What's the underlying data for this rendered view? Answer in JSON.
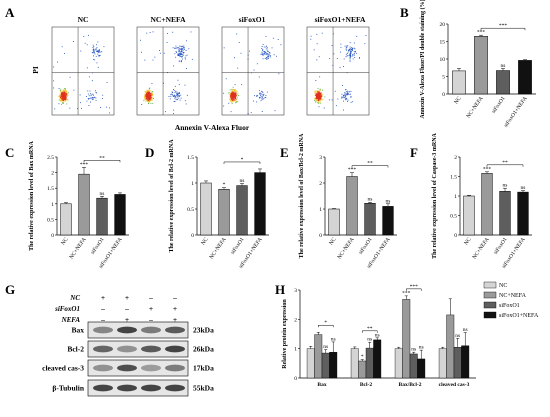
{
  "panel_labels": [
    "A",
    "B",
    "C",
    "D",
    "E",
    "F",
    "G",
    "H"
  ],
  "flow": {
    "groups": [
      "NC",
      "NC+NEFA",
      "siFoxO1",
      "siFoxO1+NEFA"
    ],
    "y_label": "PI",
    "x_label": "Annexin V-Alexa Fluor",
    "density": [
      0.55,
      1.0,
      0.6,
      0.85
    ]
  },
  "colors": {
    "NC": "#d4d4d4",
    "NC+NEFA": "#9a9a9a",
    "siFoxO1": "#5e5e5e",
    "siFoxO1+NEFA": "#111111"
  },
  "chart_data": [
    {
      "panel": "B",
      "type": "bar",
      "categories": [
        "NC",
        "NC+NEFA",
        "siFoxO1",
        "siFoxO1+NEFA"
      ],
      "values": [
        6.6,
        16.5,
        6.7,
        9.6
      ],
      "errors": [
        0.7,
        0.3,
        0.6,
        0.2
      ],
      "ylabel": "Annexin V-Alexa Fluor/PI double staining (%)",
      "ylim": [
        0,
        20
      ],
      "yticks": [
        0,
        5,
        10,
        15,
        20
      ],
      "sig": [
        {
          "over": 1,
          "text": "***"
        },
        {
          "over": 2,
          "text": "ns"
        }
      ],
      "brackets": [
        {
          "from": 1,
          "to": 3,
          "text": "***"
        }
      ]
    },
    {
      "panel": "C",
      "type": "bar",
      "categories": [
        "NC",
        "NC+NEFA",
        "siFoxO1",
        "siFoxO1+NEFA"
      ],
      "values": [
        1.0,
        1.95,
        1.18,
        1.3
      ],
      "errors": [
        0.04,
        0.22,
        0.06,
        0.05
      ],
      "ylabel": "The relative expression level of Bax mRNA",
      "ylim": [
        0,
        2.5
      ],
      "yticks": [
        0.0,
        0.5,
        1.0,
        1.5,
        2.0,
        2.5
      ],
      "sig": [
        {
          "over": 1,
          "text": "***"
        },
        {
          "over": 2,
          "text": "ns"
        }
      ],
      "brackets": [
        {
          "from": 1,
          "to": 3,
          "text": "**"
        }
      ]
    },
    {
      "panel": "D",
      "type": "bar",
      "categories": [
        "NC",
        "NC+NEFA",
        "siFoxO1",
        "siFoxO1+NEFA"
      ],
      "values": [
        1.0,
        0.88,
        0.95,
        1.2
      ],
      "errors": [
        0.04,
        0.03,
        0.04,
        0.07
      ],
      "ylabel": "The relative expression level of Bcl-2 mRNA",
      "ylim": [
        0,
        1.5
      ],
      "yticks": [
        0.0,
        0.5,
        1.0,
        1.5
      ],
      "sig": [
        {
          "over": 1,
          "text": "*"
        },
        {
          "over": 2,
          "text": "ns"
        }
      ],
      "brackets": [
        {
          "from": 1,
          "to": 3,
          "text": "*"
        }
      ]
    },
    {
      "panel": "E",
      "type": "bar",
      "categories": [
        "NC",
        "NC+NEFA",
        "siFoxO1",
        "siFoxO1+NEFA"
      ],
      "values": [
        1.0,
        2.25,
        1.22,
        1.1
      ],
      "errors": [
        0.02,
        0.15,
        0.04,
        0.1
      ],
      "ylabel": "The relative expression level of Bax/Bcl-2 mRNA",
      "ylim": [
        0,
        3
      ],
      "yticks": [
        0,
        1,
        2,
        3
      ],
      "sig": [
        {
          "over": 1,
          "text": "***"
        },
        {
          "over": 2,
          "text": "ns"
        },
        {
          "over": 3,
          "text": "ns"
        }
      ],
      "brackets": [
        {
          "from": 1,
          "to": 3,
          "text": "**"
        }
      ]
    },
    {
      "panel": "F",
      "type": "bar",
      "categories": [
        "NC",
        "NC+NEFA",
        "siFoxO1",
        "siFoxO1+NEFA"
      ],
      "values": [
        1.0,
        1.58,
        1.12,
        1.1
      ],
      "errors": [
        0.02,
        0.04,
        0.08,
        0.04
      ],
      "ylabel": "The relative expression level of Caspase-3 mRNA",
      "ylim": [
        0,
        2.0
      ],
      "yticks": [
        0.0,
        0.5,
        1.0,
        1.5,
        2.0
      ],
      "sig": [
        {
          "over": 1,
          "text": "***"
        },
        {
          "over": 2,
          "text": "ns"
        },
        {
          "over": 3,
          "text": "ns"
        }
      ],
      "brackets": [
        {
          "from": 1,
          "to": 3,
          "text": "**"
        }
      ]
    },
    {
      "panel": "H",
      "type": "bar",
      "categories": [
        "Bax",
        "Bcl-2",
        "Bax/Bcl-2",
        "cleaved cas-3"
      ],
      "series": [
        {
          "name": "NC",
          "values": [
            1.0,
            1.0,
            1.0,
            1.0
          ],
          "errors": [
            0.08,
            0.06,
            0.05,
            0.05
          ]
        },
        {
          "name": "NC+NEFA",
          "values": [
            1.48,
            0.58,
            2.68,
            2.15
          ],
          "errors": [
            0.08,
            0.05,
            0.12,
            0.55
          ]
        },
        {
          "name": "siFoxO1",
          "values": [
            0.85,
            1.02,
            0.82,
            1.05
          ],
          "errors": [
            0.12,
            0.2,
            0.06,
            0.3
          ]
        },
        {
          "name": "siFoxO1+NEFA",
          "values": [
            0.88,
            1.3,
            0.65,
            1.1
          ],
          "errors": [
            0.35,
            0.07,
            0.3,
            0.45
          ]
        }
      ],
      "ylabel": "Relative protein expression",
      "ylim": [
        0,
        3
      ],
      "yticks": [
        0,
        1,
        2,
        3
      ],
      "legend": "right",
      "sig": [
        {
          "cat": 0,
          "series": 2,
          "text": "ns"
        },
        {
          "cat": 0,
          "series": 3,
          "text": "ns"
        },
        {
          "cat": 1,
          "series": 1,
          "text": "*"
        },
        {
          "cat": 1,
          "series": 2,
          "text": "ns"
        },
        {
          "cat": 1,
          "series": 3,
          "text": "ns"
        },
        {
          "cat": 2,
          "series": 1,
          "text": "***"
        },
        {
          "cat": 2,
          "series": 2,
          "text": "ns"
        },
        {
          "cat": 2,
          "series": 3,
          "text": "ns"
        },
        {
          "cat": 3,
          "series": 2,
          "text": "ns"
        },
        {
          "cat": 3,
          "series": 3,
          "text": "ns"
        }
      ],
      "brackets": [
        {
          "cat": 0,
          "from": 1,
          "to": 3,
          "text": "*"
        },
        {
          "cat": 1,
          "from": 1,
          "to": 3,
          "text": "**"
        },
        {
          "cat": 2,
          "from": 1,
          "to": 3,
          "text": "***"
        }
      ]
    }
  ],
  "western": {
    "conditions": [
      {
        "label": "NC",
        "marks": [
          "+",
          "+",
          "–",
          "–"
        ]
      },
      {
        "label": "siFoxO1",
        "marks": [
          "–",
          "–",
          "+",
          "+"
        ]
      },
      {
        "label": "NEFA",
        "marks": [
          "–",
          "+",
          "–",
          "+"
        ]
      }
    ],
    "bands": [
      {
        "label": "Bax",
        "kda": "23kDa"
      },
      {
        "label": "Bcl-2",
        "kda": "26kDa"
      },
      {
        "label": "cleaved cas-3",
        "kda": "17kDa"
      },
      {
        "label": "β-Tubulin",
        "kda": "55kDa"
      }
    ]
  }
}
